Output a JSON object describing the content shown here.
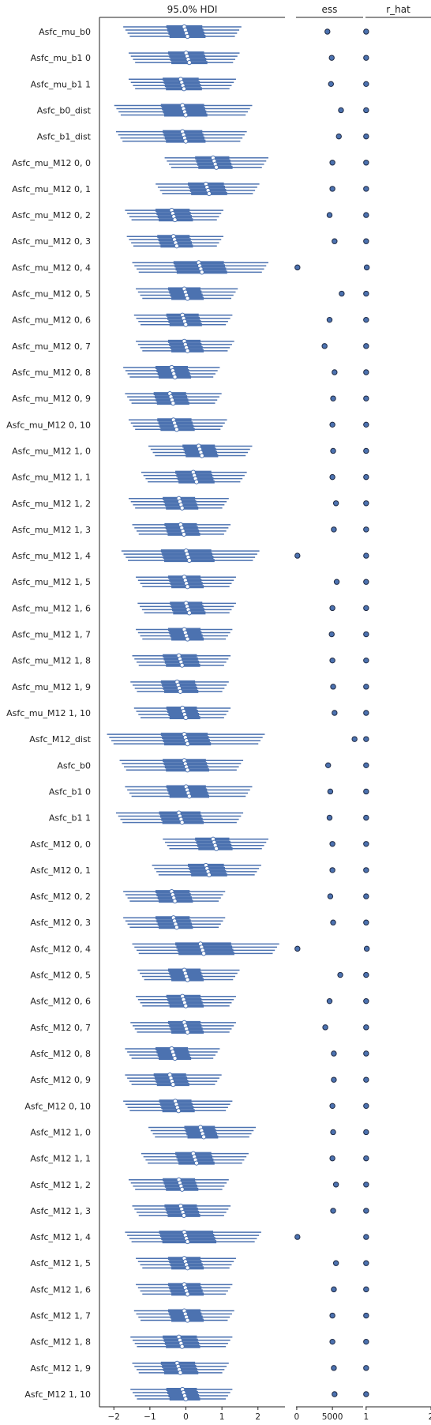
{
  "chart_data": {
    "type": "forest",
    "color": "#4c72b0",
    "panels": [
      {
        "title": "95.0% HDI",
        "xlim": [
          -2.4,
          2.75
        ],
        "ticks": [
          -2,
          -1,
          0,
          1,
          2
        ],
        "tick_labels": [
          "−2",
          "−1",
          "0",
          "1",
          "2"
        ]
      },
      {
        "title": "ess",
        "xlim": [
          -100,
          9300
        ],
        "ticks": [
          0,
          5000
        ],
        "tick_labels": [
          "0",
          "5000"
        ]
      },
      {
        "title": "r_hat",
        "xlim": [
          0.99,
          2.0
        ],
        "ticks": [
          1,
          2
        ],
        "tick_labels": [
          "1",
          "2"
        ]
      }
    ],
    "rows": [
      {
        "label": "Asfc_mu_b0",
        "mean": 0.0,
        "q25": -0.5,
        "q75": 0.5,
        "lo": -1.65,
        "hi": 1.45,
        "ess": 4300,
        "rhat": 1.0
      },
      {
        "label": "Asfc_mu_b1 0",
        "mean": 0.05,
        "q25": -0.45,
        "q75": 0.55,
        "lo": -1.5,
        "hi": 1.4,
        "ess": 4900,
        "rhat": 1.0
      },
      {
        "label": "Asfc_mu_b1 1",
        "mean": -0.1,
        "q25": -0.6,
        "q75": 0.4,
        "lo": -1.5,
        "hi": 1.3,
        "ess": 4800,
        "rhat": 1.0
      },
      {
        "label": "Asfc_b0_dist",
        "mean": -0.05,
        "q25": -0.65,
        "q75": 0.55,
        "lo": -1.9,
        "hi": 1.75,
        "ess": 6200,
        "rhat": 1.0
      },
      {
        "label": "Asfc_b1_dist",
        "mean": -0.05,
        "q25": -0.6,
        "q75": 0.5,
        "lo": -1.85,
        "hi": 1.6,
        "ess": 5900,
        "rhat": 1.0
      },
      {
        "label": "Asfc_mu_M12 0, 0",
        "mean": 0.8,
        "q25": 0.3,
        "q75": 1.25,
        "lo": -0.5,
        "hi": 2.2,
        "ess": 5000,
        "rhat": 1.0
      },
      {
        "label": "Asfc_mu_M12 0, 1",
        "mean": 0.6,
        "q25": 0.1,
        "q75": 1.1,
        "lo": -0.75,
        "hi": 1.95,
        "ess": 5000,
        "rhat": 1.0
      },
      {
        "label": "Asfc_mu_M12 0, 2",
        "mean": -0.35,
        "q25": -0.8,
        "q75": 0.15,
        "lo": -1.6,
        "hi": 0.95,
        "ess": 4600,
        "rhat": 1.0
      },
      {
        "label": "Asfc_mu_M12 0, 3",
        "mean": -0.3,
        "q25": -0.75,
        "q75": 0.15,
        "lo": -1.55,
        "hi": 0.95,
        "ess": 5300,
        "rhat": 1.0
      },
      {
        "label": "Asfc_mu_M12 0, 4",
        "mean": 0.4,
        "q25": -0.3,
        "q75": 1.1,
        "lo": -1.4,
        "hi": 2.2,
        "ess": 100,
        "rhat": 1.01
      },
      {
        "label": "Asfc_mu_M12 0, 5",
        "mean": 0.0,
        "q25": -0.45,
        "q75": 0.45,
        "lo": -1.3,
        "hi": 1.35,
        "ess": 6300,
        "rhat": 1.0
      },
      {
        "label": "Asfc_mu_M12 0, 6",
        "mean": -0.05,
        "q25": -0.5,
        "q75": 0.4,
        "lo": -1.35,
        "hi": 1.2,
        "ess": 4600,
        "rhat": 1.0
      },
      {
        "label": "Asfc_mu_M12 0, 7",
        "mean": 0.0,
        "q25": -0.45,
        "q75": 0.45,
        "lo": -1.3,
        "hi": 1.25,
        "ess": 3900,
        "rhat": 1.0
      },
      {
        "label": "Asfc_mu_M12 0, 8",
        "mean": -0.35,
        "q25": -0.8,
        "q75": 0.1,
        "lo": -1.65,
        "hi": 0.85,
        "ess": 5300,
        "rhat": 1.0
      },
      {
        "label": "Asfc_mu_M12 0, 9",
        "mean": -0.4,
        "q25": -0.85,
        "q75": 0.05,
        "lo": -1.6,
        "hi": 0.9,
        "ess": 5100,
        "rhat": 1.0
      },
      {
        "label": "Asfc_mu_M12 0, 10",
        "mean": -0.3,
        "q25": -0.75,
        "q75": 0.2,
        "lo": -1.5,
        "hi": 1.05,
        "ess": 5000,
        "rhat": 1.0
      },
      {
        "label": "Asfc_mu_M12 1, 0",
        "mean": 0.4,
        "q25": -0.05,
        "q75": 0.85,
        "lo": -0.95,
        "hi": 1.75,
        "ess": 5100,
        "rhat": 1.0
      },
      {
        "label": "Asfc_mu_M12 1, 1",
        "mean": 0.25,
        "q25": -0.25,
        "q75": 0.75,
        "lo": -1.15,
        "hi": 1.6,
        "ess": 5000,
        "rhat": 1.0
      },
      {
        "label": "Asfc_mu_M12 1, 2",
        "mean": -0.15,
        "q25": -0.6,
        "q75": 0.3,
        "lo": -1.5,
        "hi": 1.1,
        "ess": 5500,
        "rhat": 1.0
      },
      {
        "label": "Asfc_mu_M12 1, 3",
        "mean": -0.1,
        "q25": -0.55,
        "q75": 0.35,
        "lo": -1.4,
        "hi": 1.15,
        "ess": 5200,
        "rhat": 1.0
      },
      {
        "label": "Asfc_mu_M12 1, 4",
        "mean": 0.05,
        "q25": -0.65,
        "q75": 0.75,
        "lo": -1.7,
        "hi": 1.95,
        "ess": 100,
        "rhat": 1.0
      },
      {
        "label": "Asfc_mu_M12 1, 5",
        "mean": 0.0,
        "q25": -0.45,
        "q75": 0.45,
        "lo": -1.3,
        "hi": 1.3,
        "ess": 5600,
        "rhat": 1.0
      },
      {
        "label": "Asfc_mu_M12 1, 6",
        "mean": 0.05,
        "q25": -0.4,
        "q75": 0.5,
        "lo": -1.25,
        "hi": 1.3,
        "ess": 5000,
        "rhat": 1.0
      },
      {
        "label": "Asfc_mu_M12 1, 7",
        "mean": 0.0,
        "q25": -0.45,
        "q75": 0.45,
        "lo": -1.3,
        "hi": 1.2,
        "ess": 4900,
        "rhat": 1.0
      },
      {
        "label": "Asfc_mu_M12 1, 8",
        "mean": -0.15,
        "q25": -0.6,
        "q75": 0.35,
        "lo": -1.4,
        "hi": 1.15,
        "ess": 5000,
        "rhat": 1.0
      },
      {
        "label": "Asfc_mu_M12 1, 9",
        "mean": -0.2,
        "q25": -0.65,
        "q75": 0.3,
        "lo": -1.45,
        "hi": 1.1,
        "ess": 5100,
        "rhat": 1.0
      },
      {
        "label": "Asfc_mu_M12 1, 10",
        "mean": -0.05,
        "q25": -0.5,
        "q75": 0.35,
        "lo": -1.35,
        "hi": 1.15,
        "ess": 5300,
        "rhat": 1.0
      },
      {
        "label": "Asfc_M12_dist",
        "mean": 0.0,
        "q25": -0.65,
        "q75": 0.65,
        "lo": -2.1,
        "hi": 2.1,
        "ess": 8100,
        "rhat": 1.0
      },
      {
        "label": "Asfc_b0",
        "mean": 0.0,
        "q25": -0.6,
        "q75": 0.6,
        "lo": -1.75,
        "hi": 1.5,
        "ess": 4400,
        "rhat": 1.0
      },
      {
        "label": "Asfc_b1 0",
        "mean": 0.05,
        "q25": -0.5,
        "q75": 0.6,
        "lo": -1.6,
        "hi": 1.75,
        "ess": 4700,
        "rhat": 1.0
      },
      {
        "label": "Asfc_b1 1",
        "mean": -0.15,
        "q25": -0.7,
        "q75": 0.45,
        "lo": -1.85,
        "hi": 1.5,
        "ess": 4600,
        "rhat": 1.0
      },
      {
        "label": "Asfc_M12 0, 0",
        "mean": 0.8,
        "q25": 0.3,
        "q75": 1.25,
        "lo": -0.55,
        "hi": 2.2,
        "ess": 5000,
        "rhat": 1.0
      },
      {
        "label": "Asfc_M12 0, 1",
        "mean": 0.6,
        "q25": 0.1,
        "q75": 1.1,
        "lo": -0.85,
        "hi": 2.0,
        "ess": 5000,
        "rhat": 1.0
      },
      {
        "label": "Asfc_M12 0, 2",
        "mean": -0.35,
        "q25": -0.8,
        "q75": 0.15,
        "lo": -1.65,
        "hi": 1.0,
        "ess": 4700,
        "rhat": 1.0
      },
      {
        "label": "Asfc_M12 0, 3",
        "mean": -0.3,
        "q25": -0.8,
        "q75": 0.15,
        "lo": -1.65,
        "hi": 1.0,
        "ess": 5100,
        "rhat": 1.0
      },
      {
        "label": "Asfc_M12 0, 4",
        "mean": 0.45,
        "q25": -0.25,
        "q75": 1.3,
        "lo": -1.4,
        "hi": 2.5,
        "ess": 100,
        "rhat": 1.01
      },
      {
        "label": "Asfc_M12 0, 5",
        "mean": 0.0,
        "q25": -0.45,
        "q75": 0.45,
        "lo": -1.25,
        "hi": 1.4,
        "ess": 6100,
        "rhat": 1.0
      },
      {
        "label": "Asfc_M12 0, 6",
        "mean": -0.05,
        "q25": -0.5,
        "q75": 0.45,
        "lo": -1.3,
        "hi": 1.3,
        "ess": 4600,
        "rhat": 1.0
      },
      {
        "label": "Asfc_M12 0, 7",
        "mean": 0.0,
        "q25": -0.45,
        "q75": 0.45,
        "lo": -1.45,
        "hi": 1.3,
        "ess": 4000,
        "rhat": 1.0
      },
      {
        "label": "Asfc_M12 0, 8",
        "mean": -0.35,
        "q25": -0.8,
        "q75": 0.1,
        "lo": -1.6,
        "hi": 0.85,
        "ess": 5200,
        "rhat": 1.0
      },
      {
        "label": "Asfc_M12 0, 9",
        "mean": -0.4,
        "q25": -0.85,
        "q75": 0.05,
        "lo": -1.6,
        "hi": 0.9,
        "ess": 5200,
        "rhat": 1.0
      },
      {
        "label": "Asfc_M12 0, 10",
        "mean": -0.25,
        "q25": -0.7,
        "q75": 0.2,
        "lo": -1.65,
        "hi": 1.2,
        "ess": 5000,
        "rhat": 1.0
      },
      {
        "label": "Asfc_M12 1, 0",
        "mean": 0.45,
        "q25": 0.0,
        "q75": 0.85,
        "lo": -0.95,
        "hi": 1.85,
        "ess": 5100,
        "rhat": 1.0
      },
      {
        "label": "Asfc_M12 1, 1",
        "mean": 0.25,
        "q25": -0.25,
        "q75": 0.75,
        "lo": -1.15,
        "hi": 1.65,
        "ess": 5000,
        "rhat": 1.0
      },
      {
        "label": "Asfc_M12 1, 2",
        "mean": -0.15,
        "q25": -0.6,
        "q75": 0.3,
        "lo": -1.5,
        "hi": 1.1,
        "ess": 5500,
        "rhat": 1.0
      },
      {
        "label": "Asfc_M12 1, 3",
        "mean": -0.1,
        "q25": -0.55,
        "q75": 0.35,
        "lo": -1.4,
        "hi": 1.15,
        "ess": 5100,
        "rhat": 1.0
      },
      {
        "label": "Asfc_M12 1, 4",
        "mean": 0.0,
        "q25": -0.7,
        "q75": 0.8,
        "lo": -1.6,
        "hi": 2.0,
        "ess": 100,
        "rhat": 1.0
      },
      {
        "label": "Asfc_M12 1, 5",
        "mean": 0.0,
        "q25": -0.45,
        "q75": 0.45,
        "lo": -1.3,
        "hi": 1.3,
        "ess": 5500,
        "rhat": 1.0
      },
      {
        "label": "Asfc_M12 1, 6",
        "mean": 0.0,
        "q25": -0.45,
        "q75": 0.45,
        "lo": -1.3,
        "hi": 1.2,
        "ess": 5200,
        "rhat": 1.0
      },
      {
        "label": "Asfc_M12 1, 7",
        "mean": 0.0,
        "q25": -0.45,
        "q75": 0.45,
        "lo": -1.35,
        "hi": 1.25,
        "ess": 5000,
        "rhat": 1.0
      },
      {
        "label": "Asfc_M12 1, 8",
        "mean": -0.15,
        "q25": -0.6,
        "q75": 0.35,
        "lo": -1.45,
        "hi": 1.2,
        "ess": 5000,
        "rhat": 1.0
      },
      {
        "label": "Asfc_M12 1, 9",
        "mean": -0.2,
        "q25": -0.65,
        "q75": 0.3,
        "lo": -1.4,
        "hi": 1.1,
        "ess": 5200,
        "rhat": 1.0
      },
      {
        "label": "Asfc_M12 1, 10",
        "mean": -0.05,
        "q25": -0.5,
        "q75": 0.35,
        "lo": -1.45,
        "hi": 1.2,
        "ess": 5300,
        "rhat": 1.0
      }
    ]
  }
}
